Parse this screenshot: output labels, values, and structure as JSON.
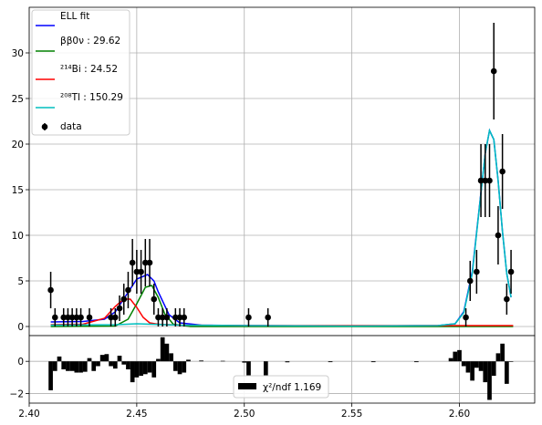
{
  "chart_data": [
    {
      "type": "scatter",
      "panel": "fit",
      "xlabel": "",
      "ylabel": "",
      "xlim": [
        2.4,
        2.635
      ],
      "ylim": [
        -1,
        35
      ],
      "yticks": [
        0,
        5,
        10,
        15,
        20,
        25,
        30
      ],
      "grid": true,
      "legend_position": "top-left",
      "legend": [
        {
          "label": "ELL fit",
          "color": "#0000ff",
          "kind": "line"
        },
        {
          "label": "ββ0ν :  29.62",
          "color": "#008000",
          "kind": "line"
        },
        {
          "label": "²¹⁴Bi :  24.52",
          "color": "#ff0000",
          "kind": "line"
        },
        {
          "label": "²⁰⁸Tl : 150.29",
          "color": "#00bfbf",
          "kind": "line"
        },
        {
          "label": "data",
          "color": "#000000",
          "kind": "errorbar"
        }
      ],
      "data_points": {
        "name": "data",
        "x": [
          2.41,
          2.412,
          2.416,
          2.418,
          2.42,
          2.422,
          2.424,
          2.428,
          2.438,
          2.44,
          2.442,
          2.444,
          2.446,
          2.448,
          2.45,
          2.452,
          2.454,
          2.456,
          2.458,
          2.46,
          2.462,
          2.464,
          2.468,
          2.47,
          2.472,
          2.502,
          2.511,
          2.603,
          2.605,
          2.608,
          2.61,
          2.612,
          2.614,
          2.616,
          2.618,
          2.62,
          2.622,
          2.624
        ],
        "y": [
          4,
          1,
          1,
          1,
          1,
          1,
          1,
          1,
          1,
          1,
          2,
          3,
          4,
          7,
          6,
          6,
          7,
          7,
          3,
          1,
          1,
          1,
          1,
          1,
          1,
          1,
          1,
          1,
          5,
          6,
          16,
          16,
          16,
          28,
          10,
          17,
          3,
          6
        ],
        "yerr": [
          2,
          1,
          1,
          1,
          1,
          1,
          1,
          1,
          1,
          1,
          1.4,
          1.7,
          2,
          2.6,
          2.4,
          2.4,
          2.6,
          2.6,
          1.7,
          1,
          1,
          1,
          1,
          1,
          1,
          1,
          1,
          1,
          2.2,
          2.4,
          4,
          4,
          4,
          5.3,
          3.2,
          4.1,
          1.7,
          2.4
        ]
      },
      "curves": [
        {
          "name": "ELL fit",
          "color": "#0000ff",
          "x": [
            2.41,
            2.425,
            2.435,
            2.44,
            2.445,
            2.45,
            2.455,
            2.458,
            2.46,
            2.465,
            2.47,
            2.48,
            2.5,
            2.55,
            2.59,
            2.598,
            2.602,
            2.606,
            2.609,
            2.612,
            2.614,
            2.616,
            2.618,
            2.62,
            2.622,
            2.624
          ],
          "y": [
            0.5,
            0.55,
            0.8,
            1.6,
            3.4,
            5.2,
            5.7,
            5.0,
            3.8,
            1.3,
            0.4,
            0.15,
            0.1,
            0.05,
            0.1,
            0.3,
            1.6,
            6.0,
            12.5,
            19.0,
            21.5,
            20.5,
            16.0,
            10.5,
            5.8,
            3.2
          ]
        },
        {
          "name": "ββ0ν",
          "color": "#008000",
          "x": [
            2.41,
            2.44,
            2.446,
            2.45,
            2.454,
            2.457,
            2.46,
            2.463,
            2.467,
            2.475,
            2.625
          ],
          "y": [
            0,
            0.05,
            0.8,
            2.5,
            4.3,
            4.5,
            3.2,
            1.4,
            0.25,
            0,
            0
          ]
        },
        {
          "name": "²¹⁴Bi",
          "color": "#ff0000",
          "x": [
            2.41,
            2.425,
            2.435,
            2.44,
            2.444,
            2.447,
            2.45,
            2.453,
            2.456,
            2.46,
            2.47,
            2.5,
            2.625
          ],
          "y": [
            0.2,
            0.25,
            0.9,
            2.2,
            3.0,
            3.0,
            2.1,
            1.0,
            0.4,
            0.25,
            0.15,
            0.1,
            0.1
          ]
        },
        {
          "name": "²⁰⁸Tl",
          "color": "#00bfbf",
          "x": [
            2.41,
            2.44,
            2.45,
            2.47,
            2.5,
            2.55,
            2.59,
            2.598,
            2.602,
            2.606,
            2.609,
            2.612,
            2.614,
            2.616,
            2.618,
            2.62,
            2.622,
            2.624
          ],
          "y": [
            0.15,
            0.2,
            0.3,
            0.15,
            0.1,
            0.05,
            0.1,
            0.3,
            1.5,
            5.8,
            12.4,
            19.0,
            21.5,
            20.5,
            16.0,
            10.5,
            5.8,
            3.2
          ]
        }
      ]
    },
    {
      "type": "bar",
      "panel": "residuals",
      "xlim": [
        2.4,
        2.635
      ],
      "ylim": [
        -2.6,
        1.6
      ],
      "xticks": [
        2.4,
        2.45,
        2.5,
        2.55,
        2.6
      ],
      "xtick_labels": [
        "2.40",
        "2.45",
        "2.50",
        "2.55",
        "2.60"
      ],
      "yticks": [
        0,
        -2
      ],
      "ytick_labels": [
        "0",
        "−2"
      ],
      "grid": true,
      "legend_position": "bottom-center",
      "legend": [
        {
          "label": "χ²/ndf  1.169",
          "color": "#000000",
          "kind": "bar"
        }
      ],
      "bar_width": 0.002,
      "x": [
        2.41,
        2.412,
        2.414,
        2.416,
        2.418,
        2.42,
        2.422,
        2.424,
        2.426,
        2.428,
        2.43,
        2.432,
        2.434,
        2.436,
        2.438,
        2.44,
        2.442,
        2.444,
        2.446,
        2.448,
        2.45,
        2.452,
        2.454,
        2.456,
        2.458,
        2.46,
        2.462,
        2.464,
        2.466,
        2.468,
        2.47,
        2.472,
        2.474,
        2.48,
        2.49,
        2.5,
        2.502,
        2.51,
        2.52,
        2.54,
        2.56,
        2.58,
        2.596,
        2.598,
        2.6,
        2.602,
        2.604,
        2.606,
        2.608,
        2.61,
        2.612,
        2.614,
        2.616,
        2.618,
        2.62,
        2.622,
        2.624
      ],
      "values": [
        -1.8,
        -0.6,
        0.3,
        -0.5,
        -0.6,
        -0.6,
        -0.7,
        -0.7,
        -0.65,
        0.2,
        -0.6,
        -0.3,
        0.4,
        0.45,
        -0.3,
        -0.45,
        0.35,
        -0.2,
        -0.5,
        -1.3,
        -1.0,
        -0.9,
        -0.8,
        -0.7,
        -1.0,
        0.15,
        1.5,
        1.1,
        0.5,
        -0.6,
        -0.8,
        -0.7,
        0.1,
        0.05,
        0.03,
        -0.08,
        -0.9,
        -0.9,
        -0.06,
        -0.05,
        -0.05,
        -0.05,
        0.2,
        0.6,
        0.7,
        -0.3,
        -0.7,
        -1.2,
        -0.4,
        -0.6,
        -1.3,
        -2.4,
        -0.9,
        0.5,
        1.1,
        -1.4,
        0.0
      ]
    }
  ]
}
